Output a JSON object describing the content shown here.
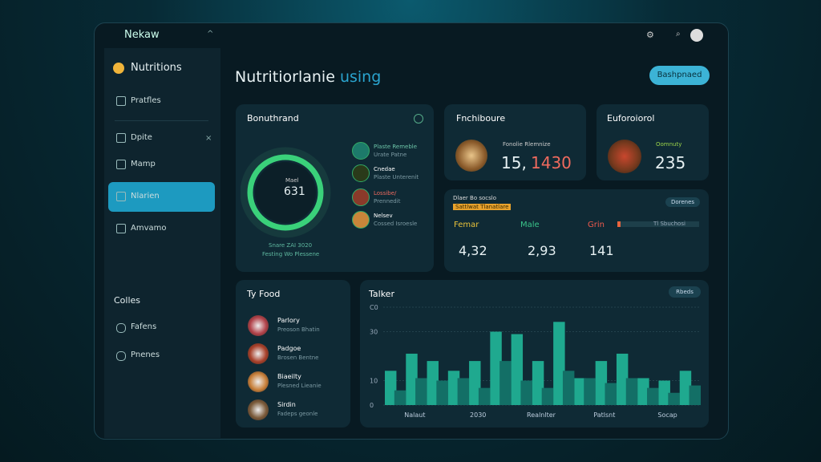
{
  "app": {
    "logo": "Nekaw"
  },
  "sidebar": {
    "brand": "Nutritions",
    "items": [
      "Pratfles",
      "Dpite",
      "Mamp",
      "Nlarien",
      "Amvamo"
    ],
    "section": "Colles",
    "section_items": [
      "Fafens",
      "Pnenes"
    ]
  },
  "header": {
    "title": "Nutritiorlanie",
    "title_accent": "using",
    "button": "Bashpnaed"
  },
  "summary_card": {
    "title": "Bonuthrand",
    "ring_label": "Mael",
    "ring_value": "631",
    "caption": [
      "Snare ZAI 3020",
      "Festing Wo Plessene"
    ],
    "legend": [
      {
        "name": "Plaste Remeble",
        "sub": "Urate Patne"
      },
      {
        "name": "Cnedae",
        "sub": "Plaste Unterenit"
      },
      {
        "name": "Lossibe/",
        "sub": "Prennedit"
      },
      {
        "name": "Nelsev",
        "sub": "Cossed Isroesle"
      }
    ]
  },
  "food_card": {
    "title": "Fnchiboure",
    "sub": "Fonolie Rlemnize",
    "value": "15,",
    "value_accent": "1430"
  },
  "other_card": {
    "title": "Euforoiorol",
    "sub": "Oomnuty",
    "value": "235"
  },
  "stats_card": {
    "title": "Dlaer Bo socslo",
    "tag": "Sattlwat Tlanatlare",
    "button": "Dorenes",
    "bar_label": "Tl Sbuchosi",
    "columns": [
      {
        "name": "Femar",
        "value": "4,32"
      },
      {
        "name": "Male",
        "value": "2,93"
      },
      {
        "name": "Grin",
        "value": "141"
      }
    ]
  },
  "foods": {
    "title": "Ty Food",
    "items": [
      {
        "name": "Parlory",
        "sub": "Preoson Bhatin"
      },
      {
        "name": "Padgoe",
        "sub": "Brosen Bentne"
      },
      {
        "name": "Biaeilty",
        "sub": "Plesned Lieanie"
      },
      {
        "name": "Sirdin",
        "sub": "Fadeps geonle"
      }
    ]
  },
  "chart": {
    "type": "bar",
    "title": "Talker",
    "button": "Rbeds",
    "categories": [
      null,
      "Nalaut",
      null,
      null,
      "2030",
      null,
      null,
      "Realnlter",
      null,
      null,
      "Patlsnt",
      null,
      null,
      "Socap",
      null
    ],
    "series": [
      {
        "color": "#1fa98f",
        "values": [
          14,
          21,
          18,
          14,
          18,
          30,
          29,
          18,
          34,
          11,
          18,
          21,
          11,
          10,
          14
        ]
      },
      {
        "color": "#136f66",
        "values": [
          6,
          11,
          10,
          11,
          7,
          18,
          10,
          7,
          14,
          11,
          9,
          11,
          7,
          5,
          8
        ]
      }
    ],
    "ylim": [
      0,
      40
    ],
    "yticks": [
      0,
      10,
      30,
      {
        "value": 40,
        "label": "C0"
      }
    ],
    "grid": true
  }
}
